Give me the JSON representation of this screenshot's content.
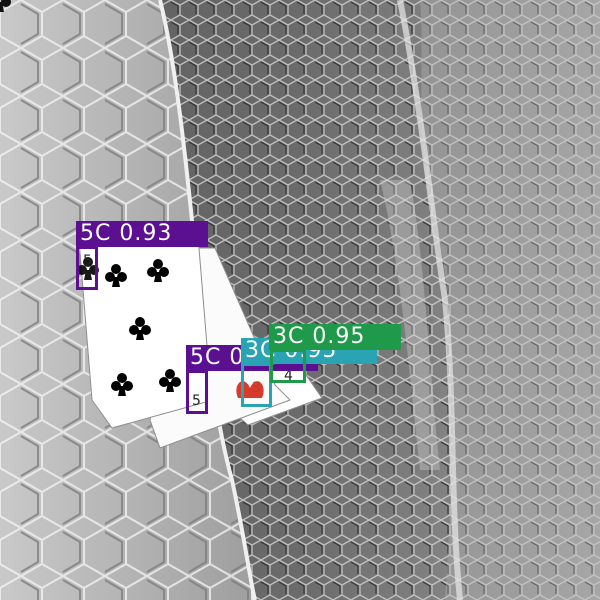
{
  "detections": [
    {
      "label": "5C",
      "confidence": "0.93",
      "color": "#5b0f91"
    },
    {
      "label": "5C",
      "confidence": "0.93",
      "color": "#5b0f91"
    },
    {
      "label": "3C",
      "confidence": "0.95",
      "color": "#2aa3b3"
    },
    {
      "label": "3C",
      "confidence": "0.95",
      "color": "#1f9a4a"
    }
  ],
  "cards": [
    {
      "rank": "5",
      "suit": "clubs"
    },
    {
      "rank": "5",
      "suit": "clubs"
    },
    {
      "rank": "3",
      "suit": "clubs"
    }
  ]
}
